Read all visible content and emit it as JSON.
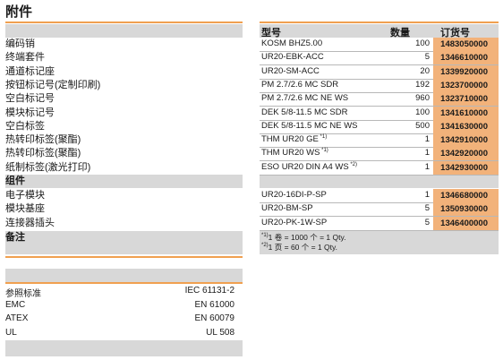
{
  "title": "附件",
  "left_items": [
    "编码销",
    "终端套件",
    "通道标记座",
    "按钮标记号(定制印刷)",
    "空白标记号",
    "模块标记号",
    "空白标签",
    "热转印标签(聚酯)",
    "热转印标签(聚酯)",
    "纸制标签(激光打印)"
  ],
  "left_section_component": "组件",
  "component_items": [
    "电子模块",
    "模块基座",
    "连接器插头"
  ],
  "left_section_notes": "备注",
  "table_headers": {
    "type": "型号",
    "qty": "数量",
    "order": "订货号"
  },
  "accessory_rows": [
    {
      "type": "KOSM BHZ5.00",
      "sup": "",
      "qty": "100",
      "order": "1483050000"
    },
    {
      "type": "UR20-EBK-ACC",
      "sup": "",
      "qty": "5",
      "order": "1346610000"
    },
    {
      "type": "UR20-SM-ACC",
      "sup": "",
      "qty": "20",
      "order": "1339920000"
    },
    {
      "type": "PM 2.7/2.6 MC SDR",
      "sup": "",
      "qty": "192",
      "order": "1323700000"
    },
    {
      "type": "PM 2.7/2.6 MC NE WS",
      "sup": "",
      "qty": "960",
      "order": "1323710000"
    },
    {
      "type": "DEK 5/8-11.5 MC SDR",
      "sup": "",
      "qty": "100",
      "order": "1341610000"
    },
    {
      "type": "DEK 5/8-11.5 MC NE WS",
      "sup": "",
      "qty": "500",
      "order": "1341630000"
    },
    {
      "type": "THM UR20 GE",
      "sup": "*1)",
      "qty": "1",
      "order": "1342910000"
    },
    {
      "type": "THM UR20 WS",
      "sup": "*1)",
      "qty": "1",
      "order": "1342920000"
    },
    {
      "type": "ESO UR20 DIN A4 WS",
      "sup": "*2)",
      "qty": "1",
      "order": "1342930000"
    }
  ],
  "component_rows": [
    {
      "type": "UR20-16DI-P-SP",
      "qty": "1",
      "order": "1346680000"
    },
    {
      "type": "UR20-BM-SP",
      "qty": "5",
      "order": "1350930000"
    },
    {
      "type": "UR20-PK-1W-SP",
      "qty": "5",
      "order": "1346400000"
    }
  ],
  "notes": [
    {
      "sup": "*1)",
      "text": "1 卷 = 1000 个 = 1 Qty."
    },
    {
      "sup": "*2)",
      "text": "1 页 = 60 个 = 1 Qty."
    }
  ],
  "standards": [
    {
      "label": "参照标准",
      "value": "IEC 61131-2"
    },
    {
      "label": "EMC",
      "value": "EN 61000"
    },
    {
      "label": "ATEX",
      "value": "EN 60079"
    },
    {
      "label": "UL",
      "value": "UL 508"
    }
  ],
  "colors": {
    "accent": "#f0a050",
    "order_fill": "#f2b27a",
    "section_grey": "#d8d8d8"
  }
}
